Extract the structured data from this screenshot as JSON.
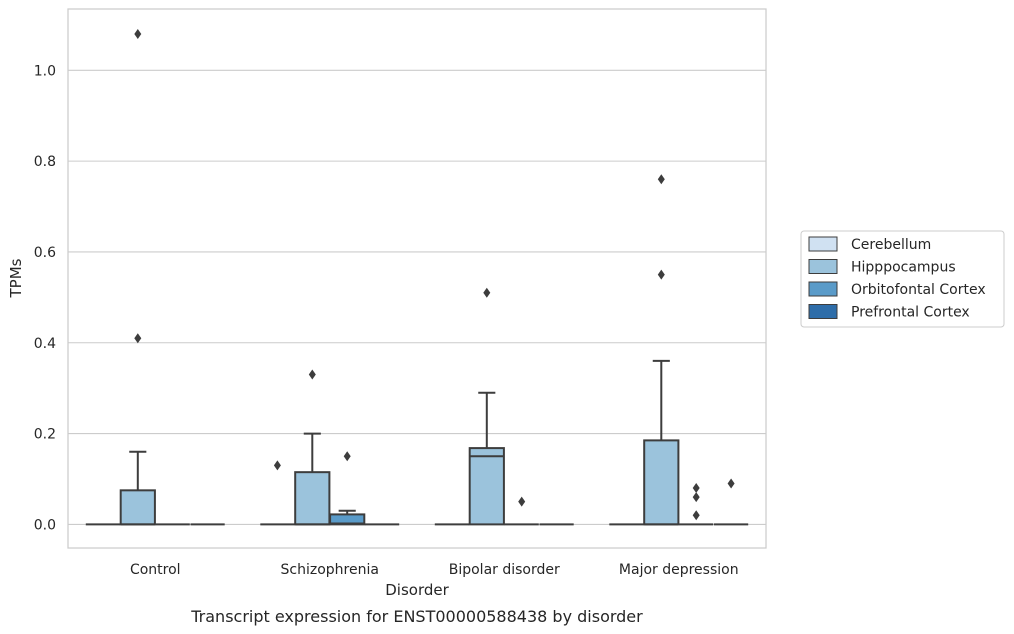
{
  "chart_data": {
    "type": "box",
    "caption": "Transcript expression for ENST00000588438 by disorder",
    "xlabel": "Disorder",
    "ylabel": "TPMs",
    "ylim": [
      -0.052,
      1.135
    ],
    "yticks": [
      "0.0",
      "0.2",
      "0.4",
      "0.6",
      "0.8",
      "1.0"
    ],
    "grid": true,
    "legend_position": "right",
    "categories": [
      "Control",
      "Schizophrenia",
      "Bipolar disorder",
      "Major depression"
    ],
    "series": [
      {
        "name": "Cerebellum",
        "color": "#d0e1f2",
        "boxes": [
          {
            "q1": 0,
            "median": 0,
            "q3": 0,
            "whisker_low": 0,
            "whisker_high": 0,
            "outliers": []
          },
          {
            "q1": 0,
            "median": 0,
            "q3": 0,
            "whisker_low": 0,
            "whisker_high": 0,
            "outliers": [
              0.13
            ]
          },
          {
            "q1": 0,
            "median": 0,
            "q3": 0,
            "whisker_low": 0,
            "whisker_high": 0,
            "outliers": []
          },
          {
            "q1": 0,
            "median": 0,
            "q3": 0,
            "whisker_low": 0,
            "whisker_high": 0,
            "outliers": []
          }
        ]
      },
      {
        "name": "Hipppocampus",
        "color": "#9bc3dc",
        "boxes": [
          {
            "q1": 0,
            "median": 0,
            "q3": 0.075,
            "whisker_low": 0,
            "whisker_high": 0.16,
            "outliers": [
              0.41,
              1.08
            ]
          },
          {
            "q1": 0,
            "median": 0,
            "q3": 0.115,
            "whisker_low": 0,
            "whisker_high": 0.2,
            "outliers": [
              0.33
            ]
          },
          {
            "q1": 0,
            "median": 0.15,
            "q3": 0.168,
            "whisker_low": 0,
            "whisker_high": 0.29,
            "outliers": [
              0.51
            ]
          },
          {
            "q1": 0,
            "median": 0,
            "q3": 0.185,
            "whisker_low": 0,
            "whisker_high": 0.36,
            "outliers": [
              0.55,
              0.76
            ]
          }
        ]
      },
      {
        "name": "Orbitofontal Cortex",
        "color": "#5a9bc9",
        "boxes": [
          {
            "q1": 0,
            "median": 0,
            "q3": 0,
            "whisker_low": 0,
            "whisker_high": 0,
            "outliers": []
          },
          {
            "q1": 0,
            "median": 0.002,
            "q3": 0.022,
            "whisker_low": 0,
            "whisker_high": 0.03,
            "outliers": [
              0.15
            ]
          },
          {
            "q1": 0,
            "median": 0,
            "q3": 0,
            "whisker_low": 0,
            "whisker_high": 0,
            "outliers": [
              0.05
            ]
          },
          {
            "q1": 0,
            "median": 0,
            "q3": 0,
            "whisker_low": 0,
            "whisker_high": 0,
            "outliers": [
              0.02,
              0.06,
              0.08
            ]
          }
        ]
      },
      {
        "name": "Prefrontal Cortex",
        "color": "#2e6da9",
        "boxes": [
          {
            "q1": 0,
            "median": 0,
            "q3": 0,
            "whisker_low": 0,
            "whisker_high": 0,
            "outliers": []
          },
          {
            "q1": 0,
            "median": 0,
            "q3": 0,
            "whisker_low": 0,
            "whisker_high": 0,
            "outliers": []
          },
          {
            "q1": 0,
            "median": 0,
            "q3": 0,
            "whisker_low": 0,
            "whisker_high": 0,
            "outliers": []
          },
          {
            "q1": 0,
            "median": 0,
            "q3": 0,
            "whisker_low": 0,
            "whisker_high": 0,
            "outliers": [
              0.09
            ]
          }
        ]
      }
    ]
  }
}
